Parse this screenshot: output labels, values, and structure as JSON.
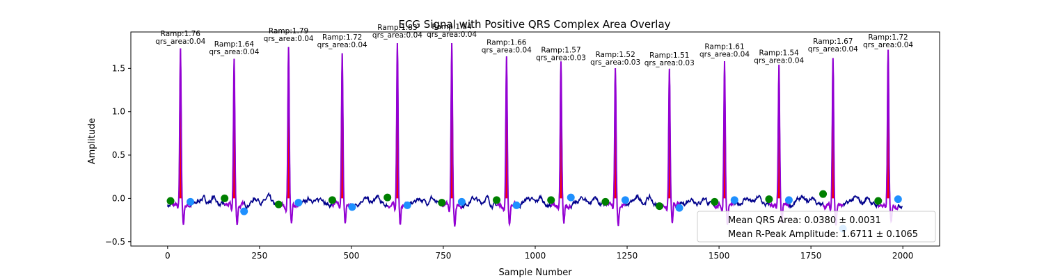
{
  "chart_data": {
    "type": "line",
    "title": "ECG Signal with Positive QRS Complex Area Overlay",
    "xlabel": "Sample Number",
    "ylabel": "Amplitude",
    "xlim": [
      -100,
      2100
    ],
    "ylim": [
      -0.55,
      1.92
    ],
    "xticks": [
      0,
      250,
      500,
      750,
      1000,
      1250,
      1500,
      1750,
      2000
    ],
    "yticks": [
      -0.5,
      0.0,
      0.5,
      1.0,
      1.5
    ],
    "xtick_labels": [
      "0",
      "250",
      "500",
      "750",
      "1000",
      "1250",
      "1500",
      "1750",
      "2000"
    ],
    "ytick_labels": [
      "−0.5",
      "0.0",
      "0.5",
      "1.0",
      "1.5"
    ],
    "colors": {
      "ecg_line": "#00008b",
      "qrs_line": "#9400d3",
      "qrs_fill": "#ff0000",
      "onset_marker": "#008000",
      "offset_marker": "#1e90ff"
    },
    "beats": [
      {
        "r_x": 35,
        "r_amp": 1.76,
        "onset_x": 8,
        "onset_y": -0.03,
        "offset_x": 62,
        "offset_y": -0.04,
        "label_ramp": "Ramp:1.76",
        "label_area": "qrs_area:0.04"
      },
      {
        "r_x": 181,
        "r_amp": 1.64,
        "onset_x": 155,
        "onset_y": 0.0,
        "offset_x": 208,
        "offset_y": -0.15,
        "label_ramp": "Ramp:1.64",
        "label_area": "qrs_area:0.04"
      },
      {
        "r_x": 329,
        "r_amp": 1.79,
        "onset_x": 302,
        "onset_y": -0.07,
        "offset_x": 356,
        "offset_y": -0.05,
        "label_ramp": "Ramp:1.79",
        "label_area": "qrs_area:0.04"
      },
      {
        "r_x": 475,
        "r_amp": 1.72,
        "onset_x": 448,
        "onset_y": -0.02,
        "offset_x": 502,
        "offset_y": -0.1,
        "label_ramp": "Ramp:1.72",
        "label_area": "qrs_area:0.04"
      },
      {
        "r_x": 625,
        "r_amp": 1.83,
        "onset_x": 598,
        "onset_y": 0.01,
        "offset_x": 652,
        "offset_y": -0.08,
        "label_ramp": "Ramp:1.83",
        "label_area": "qrs_area:0.04"
      },
      {
        "r_x": 773,
        "r_amp": 1.84,
        "onset_x": 746,
        "onset_y": -0.05,
        "offset_x": 800,
        "offset_y": -0.04,
        "label_ramp": "Ramp:1.84",
        "label_area": "qrs_area:0.04"
      },
      {
        "r_x": 922,
        "r_amp": 1.66,
        "onset_x": 895,
        "onset_y": -0.02,
        "offset_x": 949,
        "offset_y": -0.08,
        "label_ramp": "Ramp:1.66",
        "label_area": "qrs_area:0.04"
      },
      {
        "r_x": 1070,
        "r_amp": 1.57,
        "onset_x": 1043,
        "onset_y": -0.02,
        "offset_x": 1097,
        "offset_y": 0.01,
        "label_ramp": "Ramp:1.57",
        "label_area": "qrs_area:0.03"
      },
      {
        "r_x": 1218,
        "r_amp": 1.52,
        "onset_x": 1191,
        "onset_y": -0.04,
        "offset_x": 1245,
        "offset_y": -0.02,
        "label_ramp": "Ramp:1.52",
        "label_area": "qrs_area:0.03"
      },
      {
        "r_x": 1365,
        "r_amp": 1.51,
        "onset_x": 1338,
        "onset_y": -0.09,
        "offset_x": 1392,
        "offset_y": -0.11,
        "label_ramp": "Ramp:1.51",
        "label_area": "qrs_area:0.03"
      },
      {
        "r_x": 1515,
        "r_amp": 1.61,
        "onset_x": 1488,
        "onset_y": -0.04,
        "offset_x": 1542,
        "offset_y": -0.02,
        "label_ramp": "Ramp:1.61",
        "label_area": "qrs_area:0.04"
      },
      {
        "r_x": 1663,
        "r_amp": 1.54,
        "onset_x": 1636,
        "onset_y": -0.01,
        "offset_x": 1690,
        "offset_y": -0.02,
        "label_ramp": "Ramp:1.54",
        "label_area": "qrs_area:0.04"
      },
      {
        "r_x": 1810,
        "r_amp": 1.67,
        "onset_x": 1783,
        "onset_y": 0.05,
        "offset_x": 1837,
        "offset_y": -0.35,
        "label_ramp": "Ramp:1.67",
        "label_area": "qrs_area:0.04"
      },
      {
        "r_x": 1960,
        "r_amp": 1.72,
        "onset_x": 1933,
        "onset_y": -0.03,
        "offset_x": 1987,
        "offset_y": -0.01,
        "label_ramp": "Ramp:1.72",
        "label_area": "qrs_area:0.04"
      }
    ],
    "legend": {
      "placement": "bottom-right",
      "entries": [
        "Mean QRS Area: 0.0380 ± 0.0031",
        "Mean R-Peak Amplitude: 1.6711 ± 0.1065"
      ]
    }
  }
}
